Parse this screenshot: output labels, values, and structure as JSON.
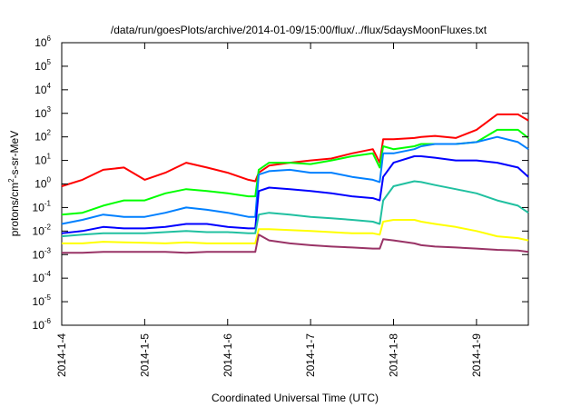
{
  "chart_data": {
    "type": "line",
    "title": "/data/run/goesPlots/archive/2014-01-09/15:00/flux/../flux/5daysMoonFluxes.txt",
    "xlabel": "Coordinated Universal Time (UTC)",
    "ylabel": {
      "prefix": "protons/cm",
      "sup": "2",
      "suffix": "-s-sr-MeV"
    },
    "y_scale": "log",
    "ylim": [
      1e-06,
      1000000.0
    ],
    "y_ticks": [
      {
        "base": "10",
        "exp": "-6",
        "value": 1e-06
      },
      {
        "base": "10",
        "exp": "-5",
        "value": 1e-05
      },
      {
        "base": "10",
        "exp": "-4",
        "value": 0.0001
      },
      {
        "base": "10",
        "exp": "-3",
        "value": 0.001
      },
      {
        "base": "10",
        "exp": "-2",
        "value": 0.01
      },
      {
        "base": "10",
        "exp": "-1",
        "value": 0.1
      },
      {
        "base": "10",
        "exp": "0",
        "value": 1
      },
      {
        "base": "10",
        "exp": "1",
        "value": 10
      },
      {
        "base": "10",
        "exp": "2",
        "value": 100
      },
      {
        "base": "10",
        "exp": "3",
        "value": 1000
      },
      {
        "base": "10",
        "exp": "4",
        "value": 10000
      },
      {
        "base": "10",
        "exp": "5",
        "value": 100000
      },
      {
        "base": "10",
        "exp": "6",
        "value": 1000000
      }
    ],
    "xlim": [
      "2014-01-04T00:00",
      "2014-01-09T15:00"
    ],
    "x_ticks": [
      {
        "label": "2014-1-4",
        "value": "2014-01-04T00:00"
      },
      {
        "label": "2014-1-5",
        "value": "2014-01-05T00:00"
      },
      {
        "label": "2014-1-6",
        "value": "2014-01-06T00:00"
      },
      {
        "label": "2014-1-7",
        "value": "2014-01-07T00:00"
      },
      {
        "label": "2014-1-8",
        "value": "2014-01-08T00:00"
      },
      {
        "label": "2014-1-9",
        "value": "2014-01-09T00:00"
      }
    ],
    "grid": false,
    "legend": "none",
    "x": [
      "2014-01-04T00:00",
      "2014-01-04T06:00",
      "2014-01-04T12:00",
      "2014-01-04T18:00",
      "2014-01-05T00:00",
      "2014-01-05T06:00",
      "2014-01-05T12:00",
      "2014-01-05T18:00",
      "2014-01-06T00:00",
      "2014-01-06T06:00",
      "2014-01-06T08:00",
      "2014-01-06T09:00",
      "2014-01-06T12:00",
      "2014-01-06T18:00",
      "2014-01-07T00:00",
      "2014-01-07T06:00",
      "2014-01-07T12:00",
      "2014-01-07T18:00",
      "2014-01-07T20:00",
      "2014-01-07T21:00",
      "2014-01-08T00:00",
      "2014-01-08T06:00",
      "2014-01-08T08:00",
      "2014-01-08T12:00",
      "2014-01-08T18:00",
      "2014-01-09T00:00",
      "2014-01-09T06:00",
      "2014-01-09T12:00",
      "2014-01-09T15:00"
    ],
    "series": [
      {
        "color": "#ff0000",
        "values": [
          0.8,
          1.5,
          4,
          5,
          1.5,
          3,
          8,
          5,
          3,
          1.5,
          1.3,
          3,
          6,
          8,
          10,
          12,
          20,
          30,
          8,
          80,
          80,
          90,
          100,
          110,
          90,
          200,
          900,
          900,
          500
        ]
      },
      {
        "color": "#00ff00",
        "values": [
          0.05,
          0.06,
          0.12,
          0.2,
          0.2,
          0.4,
          0.6,
          0.5,
          0.4,
          0.3,
          0.3,
          4,
          8,
          8,
          7,
          10,
          15,
          20,
          5,
          40,
          30,
          40,
          50,
          50,
          50,
          60,
          200,
          200,
          90
        ]
      },
      {
        "color": "#0080ff",
        "values": [
          0.02,
          0.03,
          0.05,
          0.04,
          0.04,
          0.06,
          0.1,
          0.08,
          0.06,
          0.04,
          0.04,
          2.5,
          3.5,
          4,
          3,
          3,
          2,
          1.5,
          1.2,
          20,
          20,
          30,
          40,
          50,
          50,
          60,
          100,
          60,
          30
        ]
      },
      {
        "color": "#0000ff",
        "values": [
          0.008,
          0.01,
          0.015,
          0.013,
          0.013,
          0.015,
          0.02,
          0.02,
          0.015,
          0.013,
          0.013,
          0.5,
          0.7,
          0.6,
          0.5,
          0.4,
          0.3,
          0.25,
          0.2,
          2,
          8,
          15,
          15,
          13,
          10,
          10,
          8,
          5,
          2
        ]
      },
      {
        "color": "#20c0a0",
        "values": [
          0.006,
          0.007,
          0.008,
          0.008,
          0.008,
          0.009,
          0.01,
          0.009,
          0.009,
          0.008,
          0.008,
          0.05,
          0.06,
          0.05,
          0.04,
          0.035,
          0.03,
          0.025,
          0.02,
          0.2,
          0.8,
          1.3,
          1.2,
          0.9,
          0.6,
          0.4,
          0.2,
          0.12,
          0.06
        ]
      },
      {
        "color": "#ffff00",
        "values": [
          0.003,
          0.003,
          0.0035,
          0.0033,
          0.0032,
          0.003,
          0.0033,
          0.003,
          0.003,
          0.003,
          0.003,
          0.012,
          0.012,
          0.011,
          0.01,
          0.009,
          0.008,
          0.008,
          0.007,
          0.025,
          0.03,
          0.03,
          0.025,
          0.02,
          0.015,
          0.01,
          0.006,
          0.005,
          0.004
        ]
      },
      {
        "color": "#993366",
        "values": [
          0.0012,
          0.0012,
          0.0013,
          0.0013,
          0.0013,
          0.0013,
          0.0012,
          0.0013,
          0.0013,
          0.0013,
          0.0013,
          0.007,
          0.004,
          0.003,
          0.0025,
          0.0022,
          0.002,
          0.0018,
          0.0018,
          0.0045,
          0.004,
          0.003,
          0.0025,
          0.0022,
          0.002,
          0.0018,
          0.0016,
          0.0015,
          0.0013
        ]
      }
    ]
  }
}
